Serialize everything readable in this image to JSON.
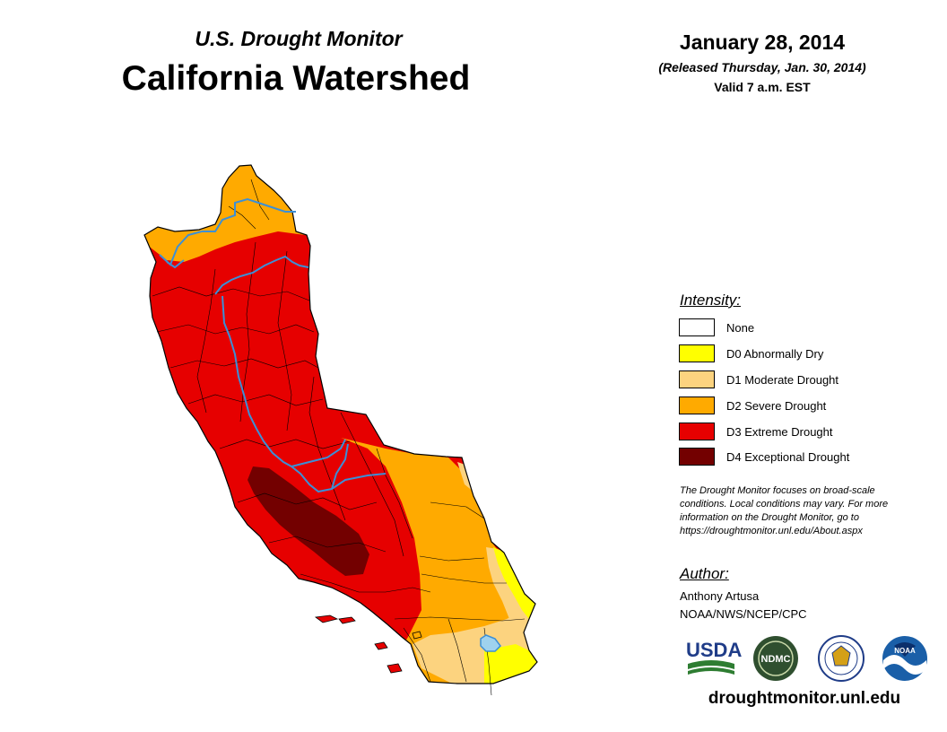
{
  "header": {
    "subtitle": "U.S. Drought Monitor",
    "title": "California Watershed",
    "date": "January 28, 2014",
    "released": "(Released Thursday, Jan. 30, 2014)",
    "valid": "Valid 7 a.m. EST"
  },
  "legend": {
    "heading": "Intensity:",
    "items": [
      {
        "label": "None",
        "color": "#ffffff"
      },
      {
        "label": "D0 Abnormally Dry",
        "color": "#ffff00"
      },
      {
        "label": "D1 Moderate Drought",
        "color": "#fcd37f"
      },
      {
        "label": "D2 Severe Drought",
        "color": "#ffaa00"
      },
      {
        "label": "D3 Extreme Drought",
        "color": "#e60000"
      },
      {
        "label": "D4 Exceptional Drought",
        "color": "#730000"
      }
    ]
  },
  "note": {
    "line1": "The Drought Monitor focuses on broad-scale",
    "line2": "conditions. Local conditions may vary. For more",
    "line3": "information on the Drought Monitor, go to",
    "line4": "https://droughtmonitor.unl.edu/About.aspx"
  },
  "author": {
    "heading": "Author:",
    "name": "Anthony Artusa",
    "org": "NOAA/NWS/NCEP/CPC"
  },
  "logos": {
    "usda": "USDA",
    "ndmc": "NDMC",
    "noaa": "NOAA"
  },
  "website": "droughtmonitor.unl.edu",
  "colors": {
    "river": "#3c8fd6",
    "lake": "#9fd2ee",
    "boundary": "#000000"
  }
}
